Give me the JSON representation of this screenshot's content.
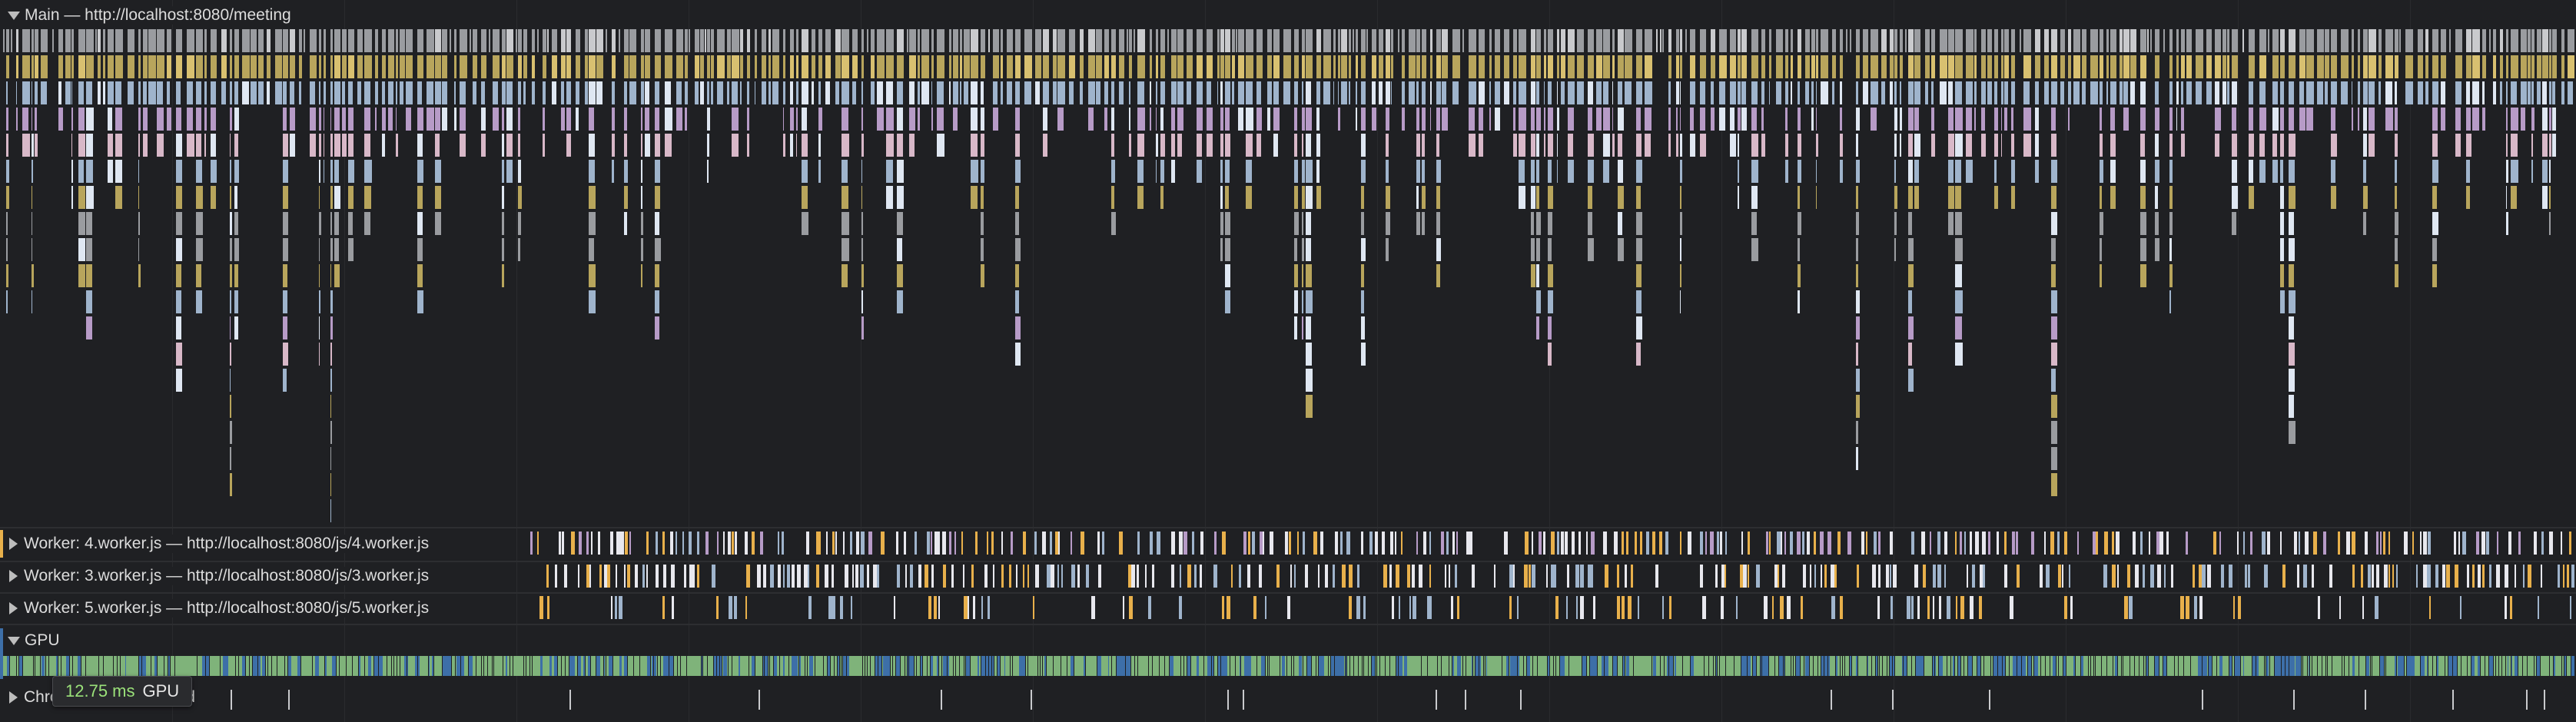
{
  "tracks": {
    "main": {
      "label": "Main — http://localhost:8080/meeting",
      "expanded": true
    },
    "workers": [
      {
        "label": "Worker: 4.worker.js — http://localhost:8080/js/4.worker.js",
        "expanded": false
      },
      {
        "label": "Worker: 3.worker.js — http://localhost:8080/js/3.worker.js",
        "expanded": false
      },
      {
        "label": "Worker: 5.worker.js — http://localhost:8080/js/5.worker.js",
        "expanded": false
      }
    ],
    "gpu": {
      "label": "GPU",
      "expanded": true
    },
    "chrome": {
      "label": "Chrome_ChildIOThread",
      "expanded": false
    }
  },
  "tooltip": {
    "duration": "12.75 ms",
    "name": "GPU"
  },
  "colors": {
    "background": "#1f2023",
    "task_grey": "#9a9ca0",
    "script_yellow": "#b8a55c",
    "style_purple": "#b79bc7",
    "paint_blue": "#9fb4cc",
    "pink": "#d8b8c8",
    "gpu_green": "#7fb37a",
    "gpu_blue": "#3d6fa8",
    "worker_white": "#e8e8ee",
    "worker_orange": "#e8b04b",
    "tooltip_green": "#9be27a"
  }
}
